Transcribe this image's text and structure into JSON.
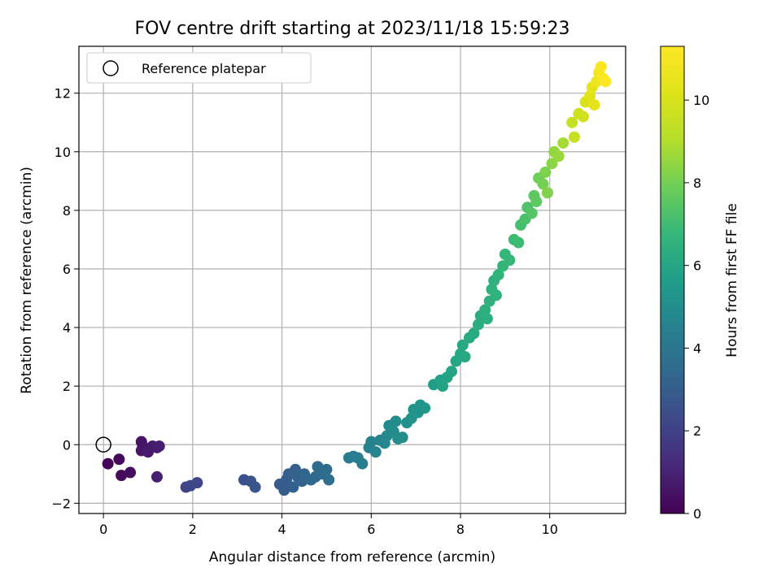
{
  "chart_data": {
    "type": "scatter",
    "title": "FOV centre drift starting at 2023/11/18 15:59:23",
    "xlabel": "Angular distance from reference (arcmin)",
    "ylabel": "Rotation from reference (arcmin)",
    "xlim": [
      -0.55,
      11.7
    ],
    "ylim": [
      -2.35,
      13.6
    ],
    "xticks": [
      0,
      2,
      4,
      6,
      8,
      10
    ],
    "yticks": [
      -2,
      0,
      2,
      4,
      6,
      8,
      10,
      12
    ],
    "grid": true,
    "colormap": "viridis",
    "colorbar": {
      "label": "Hours from first FF file",
      "range": [
        0,
        11.3
      ],
      "ticks": [
        0,
        2,
        4,
        6,
        8,
        10
      ]
    },
    "legend": {
      "location": "upper-left",
      "label": "Reference platepar",
      "marker": "hollow circle"
    },
    "reference_point": {
      "x": 0,
      "y": 0
    },
    "points": [
      {
        "x": 0.1,
        "y": -0.65,
        "h": 0.1
      },
      {
        "x": 0.35,
        "y": -0.5,
        "h": 0.2
      },
      {
        "x": 0.4,
        "y": -1.05,
        "h": 0.25
      },
      {
        "x": 0.6,
        "y": -0.95,
        "h": 0.35
      },
      {
        "x": 0.85,
        "y": 0.1,
        "h": 0.5
      },
      {
        "x": 0.88,
        "y": -0.05,
        "h": 0.55
      },
      {
        "x": 0.85,
        "y": -0.2,
        "h": 0.6
      },
      {
        "x": 0.95,
        "y": -0.15,
        "h": 0.65
      },
      {
        "x": 1.0,
        "y": -0.25,
        "h": 0.7
      },
      {
        "x": 1.1,
        "y": -0.05,
        "h": 0.75
      },
      {
        "x": 1.2,
        "y": -0.1,
        "h": 0.8
      },
      {
        "x": 1.25,
        "y": -0.05,
        "h": 0.85
      },
      {
        "x": 1.2,
        "y": -1.1,
        "h": 0.9
      },
      {
        "x": 1.85,
        "y": -1.45,
        "h": 2.1
      },
      {
        "x": 1.95,
        "y": -1.4,
        "h": 2.15
      },
      {
        "x": 2.1,
        "y": -1.3,
        "h": 2.2
      },
      {
        "x": 3.15,
        "y": -1.2,
        "h": 2.6
      },
      {
        "x": 3.3,
        "y": -1.25,
        "h": 2.65
      },
      {
        "x": 3.4,
        "y": -1.45,
        "h": 2.7
      },
      {
        "x": 3.95,
        "y": -1.35,
        "h": 2.9
      },
      {
        "x": 4.05,
        "y": -1.55,
        "h": 2.95
      },
      {
        "x": 4.1,
        "y": -1.2,
        "h": 3.0
      },
      {
        "x": 4.15,
        "y": -1.0,
        "h": 3.05
      },
      {
        "x": 4.25,
        "y": -1.45,
        "h": 3.1
      },
      {
        "x": 4.3,
        "y": -0.85,
        "h": 3.15
      },
      {
        "x": 4.35,
        "y": -1.1,
        "h": 3.2
      },
      {
        "x": 4.45,
        "y": -1.25,
        "h": 3.25
      },
      {
        "x": 4.5,
        "y": -1.0,
        "h": 3.3
      },
      {
        "x": 4.65,
        "y": -1.2,
        "h": 3.4
      },
      {
        "x": 4.75,
        "y": -1.1,
        "h": 3.45
      },
      {
        "x": 4.8,
        "y": -0.75,
        "h": 3.5
      },
      {
        "x": 4.9,
        "y": -1.0,
        "h": 3.55
      },
      {
        "x": 5.0,
        "y": -0.85,
        "h": 3.6
      },
      {
        "x": 5.05,
        "y": -1.2,
        "h": 3.65
      },
      {
        "x": 5.5,
        "y": -0.45,
        "h": 4.2
      },
      {
        "x": 5.6,
        "y": -0.4,
        "h": 4.25
      },
      {
        "x": 5.7,
        "y": -0.45,
        "h": 4.3
      },
      {
        "x": 5.8,
        "y": -0.65,
        "h": 4.35
      },
      {
        "x": 5.95,
        "y": -0.1,
        "h": 4.5
      },
      {
        "x": 6.0,
        "y": 0.1,
        "h": 4.55
      },
      {
        "x": 6.1,
        "y": -0.25,
        "h": 4.6
      },
      {
        "x": 6.2,
        "y": 0.15,
        "h": 4.65
      },
      {
        "x": 6.3,
        "y": 0.05,
        "h": 4.7
      },
      {
        "x": 6.35,
        "y": 0.3,
        "h": 4.75
      },
      {
        "x": 6.4,
        "y": 0.65,
        "h": 4.8
      },
      {
        "x": 6.5,
        "y": 0.45,
        "h": 4.9
      },
      {
        "x": 6.55,
        "y": 0.8,
        "h": 4.95
      },
      {
        "x": 6.6,
        "y": 0.2,
        "h": 5.0
      },
      {
        "x": 6.7,
        "y": 0.25,
        "h": 5.05
      },
      {
        "x": 6.8,
        "y": 0.75,
        "h": 5.1
      },
      {
        "x": 6.9,
        "y": 0.9,
        "h": 5.15
      },
      {
        "x": 6.95,
        "y": 1.2,
        "h": 5.2
      },
      {
        "x": 7.05,
        "y": 1.1,
        "h": 5.25
      },
      {
        "x": 7.1,
        "y": 1.35,
        "h": 5.3
      },
      {
        "x": 7.2,
        "y": 1.25,
        "h": 5.35
      },
      {
        "x": 7.4,
        "y": 2.05,
        "h": 5.7
      },
      {
        "x": 7.55,
        "y": 2.2,
        "h": 5.8
      },
      {
        "x": 7.6,
        "y": 2.0,
        "h": 5.85
      },
      {
        "x": 7.7,
        "y": 2.3,
        "h": 5.9
      },
      {
        "x": 7.8,
        "y": 2.5,
        "h": 5.95
      },
      {
        "x": 7.9,
        "y": 2.85,
        "h": 6.0
      },
      {
        "x": 8.0,
        "y": 3.1,
        "h": 6.05
      },
      {
        "x": 8.05,
        "y": 3.4,
        "h": 6.1
      },
      {
        "x": 8.1,
        "y": 3.0,
        "h": 6.12
      },
      {
        "x": 8.2,
        "y": 3.65,
        "h": 6.15
      },
      {
        "x": 8.3,
        "y": 3.8,
        "h": 6.2
      },
      {
        "x": 8.4,
        "y": 4.1,
        "h": 6.3
      },
      {
        "x": 8.45,
        "y": 4.4,
        "h": 6.35
      },
      {
        "x": 8.55,
        "y": 4.6,
        "h": 6.4
      },
      {
        "x": 8.6,
        "y": 4.3,
        "h": 6.42
      },
      {
        "x": 8.65,
        "y": 4.9,
        "h": 6.45
      },
      {
        "x": 8.7,
        "y": 5.3,
        "h": 6.5
      },
      {
        "x": 8.75,
        "y": 5.6,
        "h": 6.55
      },
      {
        "x": 8.8,
        "y": 5.1,
        "h": 6.57
      },
      {
        "x": 8.85,
        "y": 5.8,
        "h": 6.6
      },
      {
        "x": 8.95,
        "y": 6.1,
        "h": 6.7
      },
      {
        "x": 9.0,
        "y": 6.5,
        "h": 6.75
      },
      {
        "x": 9.1,
        "y": 6.3,
        "h": 6.8
      },
      {
        "x": 9.2,
        "y": 7.0,
        "h": 6.9
      },
      {
        "x": 9.3,
        "y": 6.9,
        "h": 6.95
      },
      {
        "x": 9.35,
        "y": 7.5,
        "h": 7.1
      },
      {
        "x": 9.45,
        "y": 7.7,
        "h": 7.2
      },
      {
        "x": 9.5,
        "y": 8.1,
        "h": 7.3
      },
      {
        "x": 9.6,
        "y": 7.9,
        "h": 7.4
      },
      {
        "x": 9.65,
        "y": 8.5,
        "h": 7.55
      },
      {
        "x": 9.7,
        "y": 8.3,
        "h": 7.6
      },
      {
        "x": 9.75,
        "y": 9.1,
        "h": 7.9
      },
      {
        "x": 9.85,
        "y": 8.9,
        "h": 8.0
      },
      {
        "x": 9.9,
        "y": 9.3,
        "h": 8.15
      },
      {
        "x": 9.95,
        "y": 8.6,
        "h": 8.2
      },
      {
        "x": 10.05,
        "y": 9.6,
        "h": 8.35
      },
      {
        "x": 10.1,
        "y": 10.0,
        "h": 8.5
      },
      {
        "x": 10.2,
        "y": 9.85,
        "h": 8.6
      },
      {
        "x": 10.3,
        "y": 10.3,
        "h": 8.8
      },
      {
        "x": 10.5,
        "y": 11.0,
        "h": 9.5
      },
      {
        "x": 10.55,
        "y": 10.5,
        "h": 9.55
      },
      {
        "x": 10.65,
        "y": 11.3,
        "h": 9.7
      },
      {
        "x": 10.75,
        "y": 11.2,
        "h": 9.8
      },
      {
        "x": 10.8,
        "y": 11.7,
        "h": 10.0
      },
      {
        "x": 10.9,
        "y": 11.9,
        "h": 10.2
      },
      {
        "x": 10.95,
        "y": 12.2,
        "h": 10.4
      },
      {
        "x": 11.0,
        "y": 11.6,
        "h": 10.5
      },
      {
        "x": 11.05,
        "y": 12.4,
        "h": 10.7
      },
      {
        "x": 11.1,
        "y": 12.7,
        "h": 10.9
      },
      {
        "x": 11.15,
        "y": 12.9,
        "h": 11.1
      },
      {
        "x": 11.2,
        "y": 12.5,
        "h": 11.2
      },
      {
        "x": 11.25,
        "y": 12.4,
        "h": 11.3
      }
    ]
  }
}
